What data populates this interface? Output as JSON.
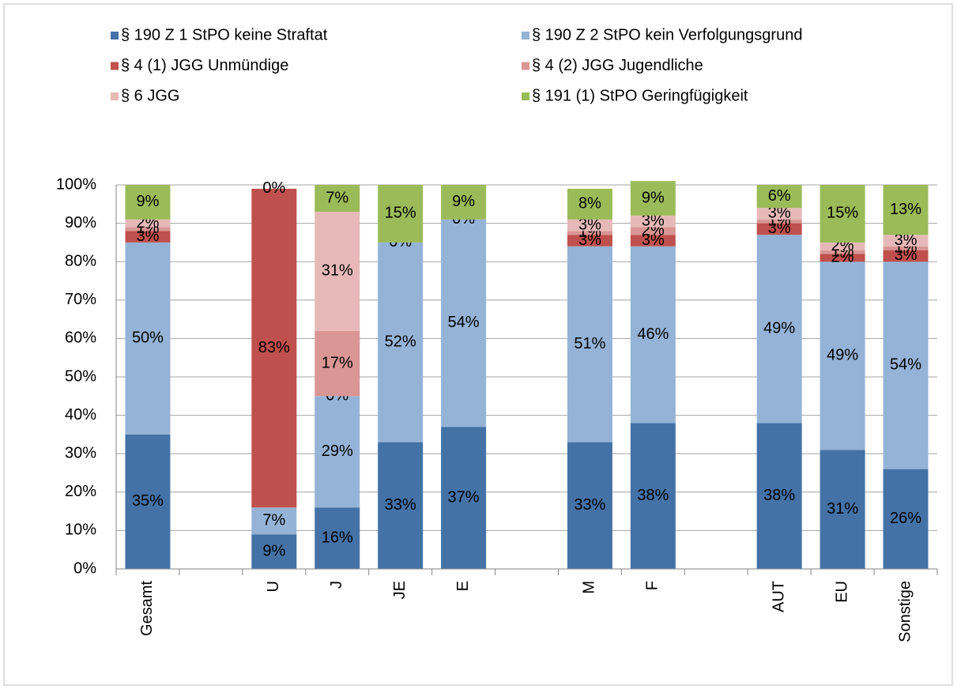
{
  "chart_data": {
    "type": "stacked_bar",
    "categories": [
      "Gesamt",
      null,
      "U",
      "J",
      "JE",
      "E",
      null,
      "M",
      "F",
      null,
      "AUT",
      "EU",
      "Sonstige"
    ],
    "ylim": [
      0,
      100
    ],
    "yticks": [
      {
        "value": 0,
        "label": "0%"
      },
      {
        "value": 10,
        "label": "10%"
      },
      {
        "value": 20,
        "label": "20%"
      },
      {
        "value": 30,
        "label": "30%"
      },
      {
        "value": 40,
        "label": "40%"
      },
      {
        "value": 50,
        "label": "50%"
      },
      {
        "value": 60,
        "label": "60%"
      },
      {
        "value": 70,
        "label": "70%"
      },
      {
        "value": 80,
        "label": "80%"
      },
      {
        "value": 90,
        "label": "90%"
      },
      {
        "value": 100,
        "label": "100%"
      }
    ],
    "grid": true,
    "series": [
      {
        "name": "§ 190 Z 1 StPO keine Straftat",
        "color": "#4472a6",
        "values": [
          35,
          null,
          9,
          16,
          33,
          37,
          null,
          33,
          38,
          null,
          38,
          31,
          26
        ],
        "value_labels": [
          "35%",
          null,
          "9%",
          "16%",
          "33%",
          "37%",
          null,
          "33%",
          "38%",
          null,
          "38%",
          "31%",
          "26%"
        ]
      },
      {
        "name": "§ 190 Z 2 StPO kein Verfolgungsgrund",
        "color": "#95b3d7",
        "values": [
          50,
          null,
          7,
          29,
          52,
          54,
          null,
          51,
          46,
          null,
          49,
          49,
          54
        ],
        "value_labels": [
          "50%",
          null,
          "7%",
          "29%",
          "52%",
          "54%",
          null,
          "51%",
          "46%",
          null,
          "49%",
          "49%",
          "54%"
        ]
      },
      {
        "name": "§ 4 (1) JGG Unmündige",
        "color": "#c0504d",
        "values": [
          3,
          null,
          83,
          0,
          0,
          0,
          null,
          3,
          3,
          null,
          3,
          2,
          3
        ],
        "value_labels": [
          "3%",
          null,
          "83%",
          "0%",
          "0%",
          "0%",
          null,
          "3%",
          "3%",
          null,
          "3%",
          "2%",
          "3%"
        ]
      },
      {
        "name": "§ 4 (2) JGG Jugendliche",
        "color": "#d99694",
        "values": [
          1,
          null,
          null,
          17,
          null,
          null,
          null,
          1,
          2,
          null,
          1,
          1,
          1
        ],
        "value_labels": [
          "1%",
          null,
          null,
          "17%",
          null,
          null,
          null,
          "1%",
          "2%",
          null,
          "1%",
          "1%",
          "1%"
        ]
      },
      {
        "name": "§ 6 JGG",
        "color": "#e6b9b8",
        "values": [
          2,
          null,
          null,
          31,
          null,
          null,
          null,
          3,
          3,
          null,
          3,
          2,
          3
        ],
        "value_labels": [
          "2%",
          null,
          null,
          "31%",
          null,
          null,
          null,
          "3%",
          "3%",
          null,
          "3%",
          "2%",
          "3%"
        ]
      },
      {
        "name": "§ 191 (1) StPO Geringfügigkeit",
        "color": "#9bbb59",
        "values": [
          9,
          null,
          0,
          7,
          15,
          9,
          null,
          8,
          9,
          null,
          6,
          15,
          13
        ],
        "value_labels": [
          "9%",
          null,
          "0%",
          "7%",
          "15%",
          "9%",
          null,
          "8%",
          "9%",
          null,
          "6%",
          "15%",
          "13%"
        ]
      }
    ]
  }
}
